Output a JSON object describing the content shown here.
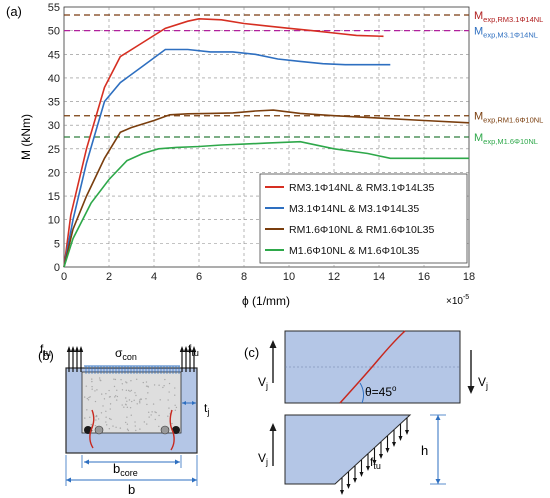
{
  "panel_labels": {
    "a": "(a)",
    "b": "(b)",
    "c": "(c)"
  },
  "chart_data": {
    "type": "line",
    "xlabel": "ϕ (1/mm)",
    "x_multiplier": "×10",
    "x_multiplier_exp": "-5",
    "ylabel": "M (kNm)",
    "xlim": [
      0,
      18
    ],
    "ylim": [
      0,
      55
    ],
    "x_ticks": [
      0,
      2,
      4,
      6,
      8,
      10,
      12,
      14,
      16,
      18
    ],
    "y_ticks": [
      0,
      5,
      10,
      15,
      20,
      25,
      30,
      35,
      40,
      45,
      50,
      55
    ],
    "grid": true,
    "legend_position": "bottom-right",
    "series": [
      {
        "name": "RM3.1Φ14NL & RM3.1Φ14L35",
        "color": "#d62f22",
        "x": [
          0,
          0.3,
          1.0,
          1.8,
          2.5,
          3.5,
          4.5,
          5.5,
          6.0,
          7.0,
          8.0,
          9.0,
          10.0,
          11.0,
          12.0,
          13.0,
          14.2
        ],
        "y": [
          0,
          11,
          25,
          38,
          44.5,
          47.5,
          50.5,
          52,
          52.5,
          52.3,
          51.5,
          51,
          50.5,
          50,
          49.5,
          49,
          48.8
        ]
      },
      {
        "name": "M3.1Φ14NL & M3.1Φ14L35",
        "color": "#2e6fc0",
        "x": [
          0,
          0.4,
          1.0,
          1.8,
          2.5,
          3.5,
          4.5,
          5.5,
          6.5,
          7.5,
          8.5,
          9.5,
          10.5,
          11.5,
          12.5,
          14.5
        ],
        "y": [
          0,
          10,
          22,
          35,
          39,
          42.5,
          46,
          46,
          45.5,
          45.5,
          45,
          44,
          43.5,
          43,
          42.8,
          42.8
        ]
      },
      {
        "name": "RM1.6Φ10NL & RM1.6Φ10L35",
        "color": "#7a3e0e",
        "x": [
          0,
          0.4,
          1.0,
          1.8,
          2.5,
          3.0,
          4.0,
          4.7,
          5.5,
          6.5,
          7.5,
          8.5,
          9.3,
          10.5,
          12.0,
          14.0,
          16.0,
          18.0
        ],
        "y": [
          0,
          8,
          15,
          23,
          28.5,
          29.5,
          31,
          32.2,
          32.4,
          32.5,
          32.6,
          33,
          33.2,
          32.5,
          32,
          31.5,
          31,
          30.5
        ]
      },
      {
        "name": "M1.6Φ10NL & M1.6Φ10L35",
        "color": "#2ea84a",
        "x": [
          0,
          0.4,
          1.2,
          2.0,
          2.8,
          3.5,
          4.2,
          5.0,
          6.0,
          7.0,
          8.0,
          9.0,
          10.5,
          12.0,
          13.5,
          14.5,
          16.0,
          18.0
        ],
        "y": [
          0,
          6,
          13.5,
          18.5,
          22.5,
          24,
          25,
          25.3,
          25.5,
          25.8,
          26,
          26.2,
          26.5,
          25,
          24,
          23,
          23,
          23
        ]
      }
    ],
    "reference_lines": [
      {
        "label": "M",
        "sub": "exp,RM3.1Φ14NL",
        "y": 53.3,
        "color": "#b01e1e",
        "line_color": "#7a3a10"
      },
      {
        "label": "M",
        "sub": "exp,M3.1Φ14NL",
        "y": 50.0,
        "color": "#2e6fc0",
        "line_color": "#b0209c"
      },
      {
        "label": "M",
        "sub": "exp,RM1.6Φ10NL",
        "y": 32.0,
        "color": "#7a3e0e",
        "line_color": "#7a3e0e"
      },
      {
        "label": "M",
        "sub": "exp,M1.6Φ10NL",
        "y": 27.5,
        "color": "#2ea84a",
        "line_color": "#2e7d3e"
      }
    ]
  },
  "diagram_b": {
    "f_left": "f",
    "f_left_sub": "tu",
    "f_right": "f",
    "f_right_sub": "tu",
    "sigma": "σ",
    "sigma_sub": "con",
    "t": "t",
    "t_sub": "j",
    "b_core": "b",
    "b_core_sub": "core",
    "b": "b"
  },
  "diagram_c": {
    "v_left": "V",
    "v_left_sub": "j",
    "v_right": "V",
    "v_right_sub": "j",
    "theta": "θ=45",
    "theta_sup": "o",
    "v_bottom": "V",
    "v_bottom_sub": "j",
    "f": "f",
    "f_sub": "tu",
    "h": "h"
  }
}
